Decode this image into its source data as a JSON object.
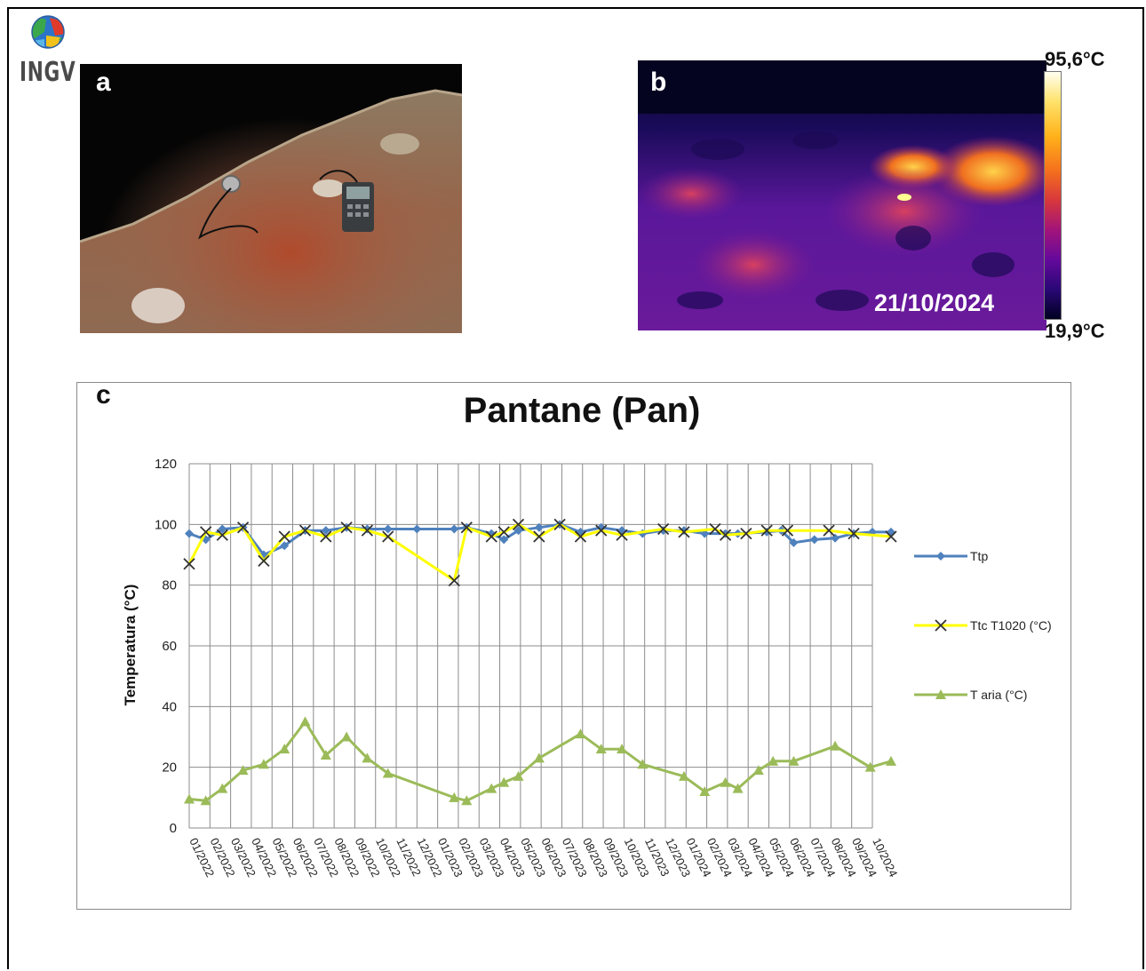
{
  "logo": {
    "text": "INGV"
  },
  "panel_a": {
    "letter": "a"
  },
  "panel_b": {
    "letter": "b",
    "date": "21/10/2024",
    "scale_max": "95,6°C",
    "scale_min": "19,9°C"
  },
  "panel_c": {
    "letter": "c"
  },
  "chart_data": {
    "type": "line",
    "title": "Pantane (Pan)",
    "ylabel": "Temperatura (°C)",
    "xlabel": "",
    "ylim": [
      0,
      120
    ],
    "yticks": [
      0,
      20,
      40,
      60,
      80,
      100,
      120
    ],
    "grid": true,
    "legend_position": "right",
    "categories": [
      "01/2022",
      "02/2022",
      "03/2022",
      "04/2022",
      "05/2022",
      "06/2022",
      "07/2022",
      "08/2022",
      "09/2022",
      "10/2022",
      "11/2022",
      "12/2022",
      "01/2023",
      "02/2023",
      "03/2023",
      "04/2023",
      "05/2023",
      "06/2023",
      "07/2023",
      "08/2023",
      "09/2023",
      "10/2023",
      "11/2023",
      "12/2023",
      "01/2024",
      "02/2024",
      "03/2024",
      "04/2024",
      "05/2024",
      "06/2024",
      "07/2024",
      "08/2024",
      "09/2024",
      "10/2024"
    ],
    "series": [
      {
        "name": "Ttp",
        "color": "#4f81bd",
        "marker": "diamond",
        "points": [
          [
            0.0,
            97
          ],
          [
            0.8,
            95
          ],
          [
            1.6,
            98.5
          ],
          [
            2.6,
            99
          ],
          [
            3.6,
            90
          ],
          [
            4.6,
            93
          ],
          [
            5.6,
            98
          ],
          [
            6.6,
            98
          ],
          [
            7.6,
            99
          ],
          [
            8.6,
            98.5
          ],
          [
            9.6,
            98.5
          ],
          [
            11.0,
            98.5
          ],
          [
            12.8,
            98.5
          ],
          [
            13.4,
            99
          ],
          [
            14.6,
            97
          ],
          [
            15.2,
            95
          ],
          [
            15.9,
            98
          ],
          [
            16.9,
            99
          ],
          [
            17.9,
            100
          ],
          [
            18.9,
            97.5
          ],
          [
            19.9,
            99
          ],
          [
            20.9,
            98
          ],
          [
            21.9,
            97
          ],
          [
            22.9,
            98
          ],
          [
            23.9,
            98
          ],
          [
            24.9,
            97
          ],
          [
            25.9,
            97
          ],
          [
            26.5,
            97
          ],
          [
            27.9,
            97.5
          ],
          [
            28.6,
            98
          ],
          [
            29.2,
            94
          ],
          [
            30.2,
            95
          ],
          [
            31.2,
            95.5
          ],
          [
            32.1,
            97
          ],
          [
            33.0,
            97.5
          ],
          [
            33.9,
            97.5
          ]
        ]
      },
      {
        "name": "Ttc T1020 (°C)",
        "color": "#ffff00",
        "marker": "x",
        "points": [
          [
            0.0,
            87
          ],
          [
            0.8,
            97.5
          ],
          [
            1.6,
            96.5
          ],
          [
            2.6,
            99
          ],
          [
            3.6,
            88
          ],
          [
            4.6,
            96
          ],
          [
            5.6,
            98
          ],
          [
            6.6,
            96
          ],
          [
            7.6,
            99
          ],
          [
            8.6,
            98
          ],
          [
            9.6,
            96
          ],
          [
            12.8,
            81.5
          ],
          [
            13.4,
            99
          ],
          [
            14.6,
            96
          ],
          [
            15.2,
            97.5
          ],
          [
            15.9,
            100
          ],
          [
            16.9,
            96
          ],
          [
            17.9,
            100
          ],
          [
            18.9,
            96
          ],
          [
            19.9,
            98
          ],
          [
            20.9,
            96.5
          ],
          [
            22.9,
            98.5
          ],
          [
            23.9,
            97.5
          ],
          [
            25.4,
            98.5
          ],
          [
            25.9,
            96.5
          ],
          [
            26.9,
            97
          ],
          [
            27.9,
            98
          ],
          [
            28.9,
            98
          ],
          [
            30.9,
            98
          ],
          [
            32.1,
            97
          ],
          [
            33.9,
            96
          ]
        ]
      },
      {
        "name": "T aria (°C)",
        "color": "#9bbb59",
        "marker": "triangle",
        "points": [
          [
            0.0,
            9.5
          ],
          [
            0.8,
            9
          ],
          [
            1.6,
            13
          ],
          [
            2.6,
            19
          ],
          [
            3.6,
            21
          ],
          [
            4.6,
            26
          ],
          [
            5.6,
            35
          ],
          [
            6.6,
            24
          ],
          [
            7.6,
            30
          ],
          [
            8.6,
            23
          ],
          [
            9.6,
            18
          ],
          [
            12.8,
            10
          ],
          [
            13.4,
            9
          ],
          [
            14.6,
            13
          ],
          [
            15.2,
            15
          ],
          [
            15.9,
            17
          ],
          [
            16.9,
            23
          ],
          [
            18.9,
            31
          ],
          [
            19.9,
            26
          ],
          [
            20.9,
            26
          ],
          [
            21.9,
            21
          ],
          [
            23.9,
            17
          ],
          [
            24.9,
            12
          ],
          [
            25.9,
            15
          ],
          [
            26.5,
            13
          ],
          [
            27.5,
            19
          ],
          [
            28.2,
            22
          ],
          [
            29.2,
            22
          ],
          [
            31.2,
            27
          ],
          [
            32.9,
            20
          ],
          [
            33.9,
            22
          ]
        ]
      }
    ]
  }
}
